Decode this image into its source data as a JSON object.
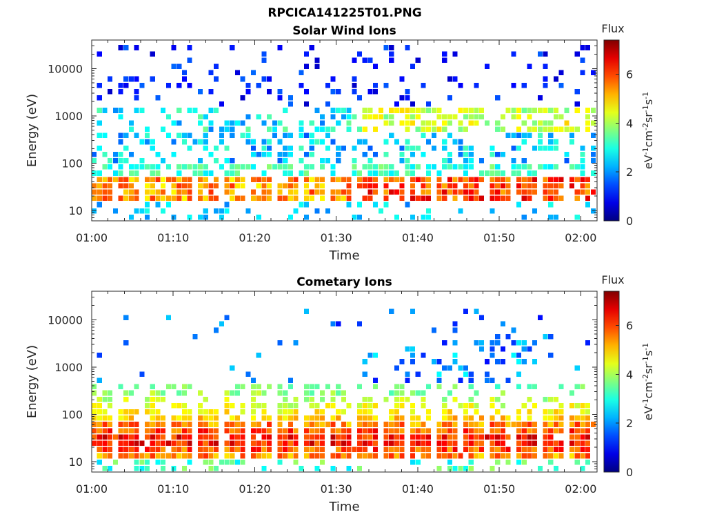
{
  "figure": {
    "title": "RPCICA141225T01.PNG"
  },
  "colorbar": {
    "label": "Flux",
    "unit_base": "eV",
    "unit_parts": [
      {
        "t": "eV",
        "sup": false
      },
      {
        "t": "-1",
        "sup": true
      },
      {
        "t": "cm",
        "sup": false
      },
      {
        "t": "-2",
        "sup": true
      },
      {
        "t": "sr",
        "sup": false
      },
      {
        "t": "-1",
        "sup": true
      },
      {
        "t": "s",
        "sup": false
      },
      {
        "t": "-1",
        "sup": true
      }
    ],
    "ticks": [
      "0",
      "2",
      "4",
      "6"
    ],
    "tick_values": [
      0,
      2,
      4,
      6
    ],
    "range": [
      0,
      7.4
    ],
    "colormap": "jet"
  },
  "chart_data": [
    {
      "type": "heatmap",
      "title": "Solar Wind Ions",
      "xlabel": "Time",
      "ylabel": "Energy (eV)",
      "x_ticks": [
        "01:00",
        "01:10",
        "01:20",
        "01:30",
        "01:40",
        "01:50",
        "02:00"
      ],
      "x_tick_minutes": [
        0,
        10,
        20,
        30,
        40,
        50,
        60
      ],
      "xlim_minutes": [
        0,
        62
      ],
      "y_ticks": [
        "10",
        "100",
        "1000",
        "10000"
      ],
      "y_tick_values": [
        10,
        100,
        1000,
        10000
      ],
      "ylim": [
        6,
        40000
      ],
      "yscale": "log",
      "grid": false,
      "profile": "solarwind"
    },
    {
      "type": "heatmap",
      "title": "Cometary Ions",
      "xlabel": "Time",
      "ylabel": "Energy (eV)",
      "x_ticks": [
        "01:00",
        "01:10",
        "01:20",
        "01:30",
        "01:40",
        "01:50",
        "02:00"
      ],
      "x_tick_minutes": [
        0,
        10,
        20,
        30,
        40,
        50,
        60
      ],
      "xlim_minutes": [
        0,
        62
      ],
      "y_ticks": [
        "10",
        "100",
        "1000",
        "10000"
      ],
      "y_tick_values": [
        10,
        100,
        1000,
        10000
      ],
      "ylim": [
        6,
        40000
      ],
      "yscale": "log",
      "grid": false,
      "profile": "cometary"
    }
  ]
}
